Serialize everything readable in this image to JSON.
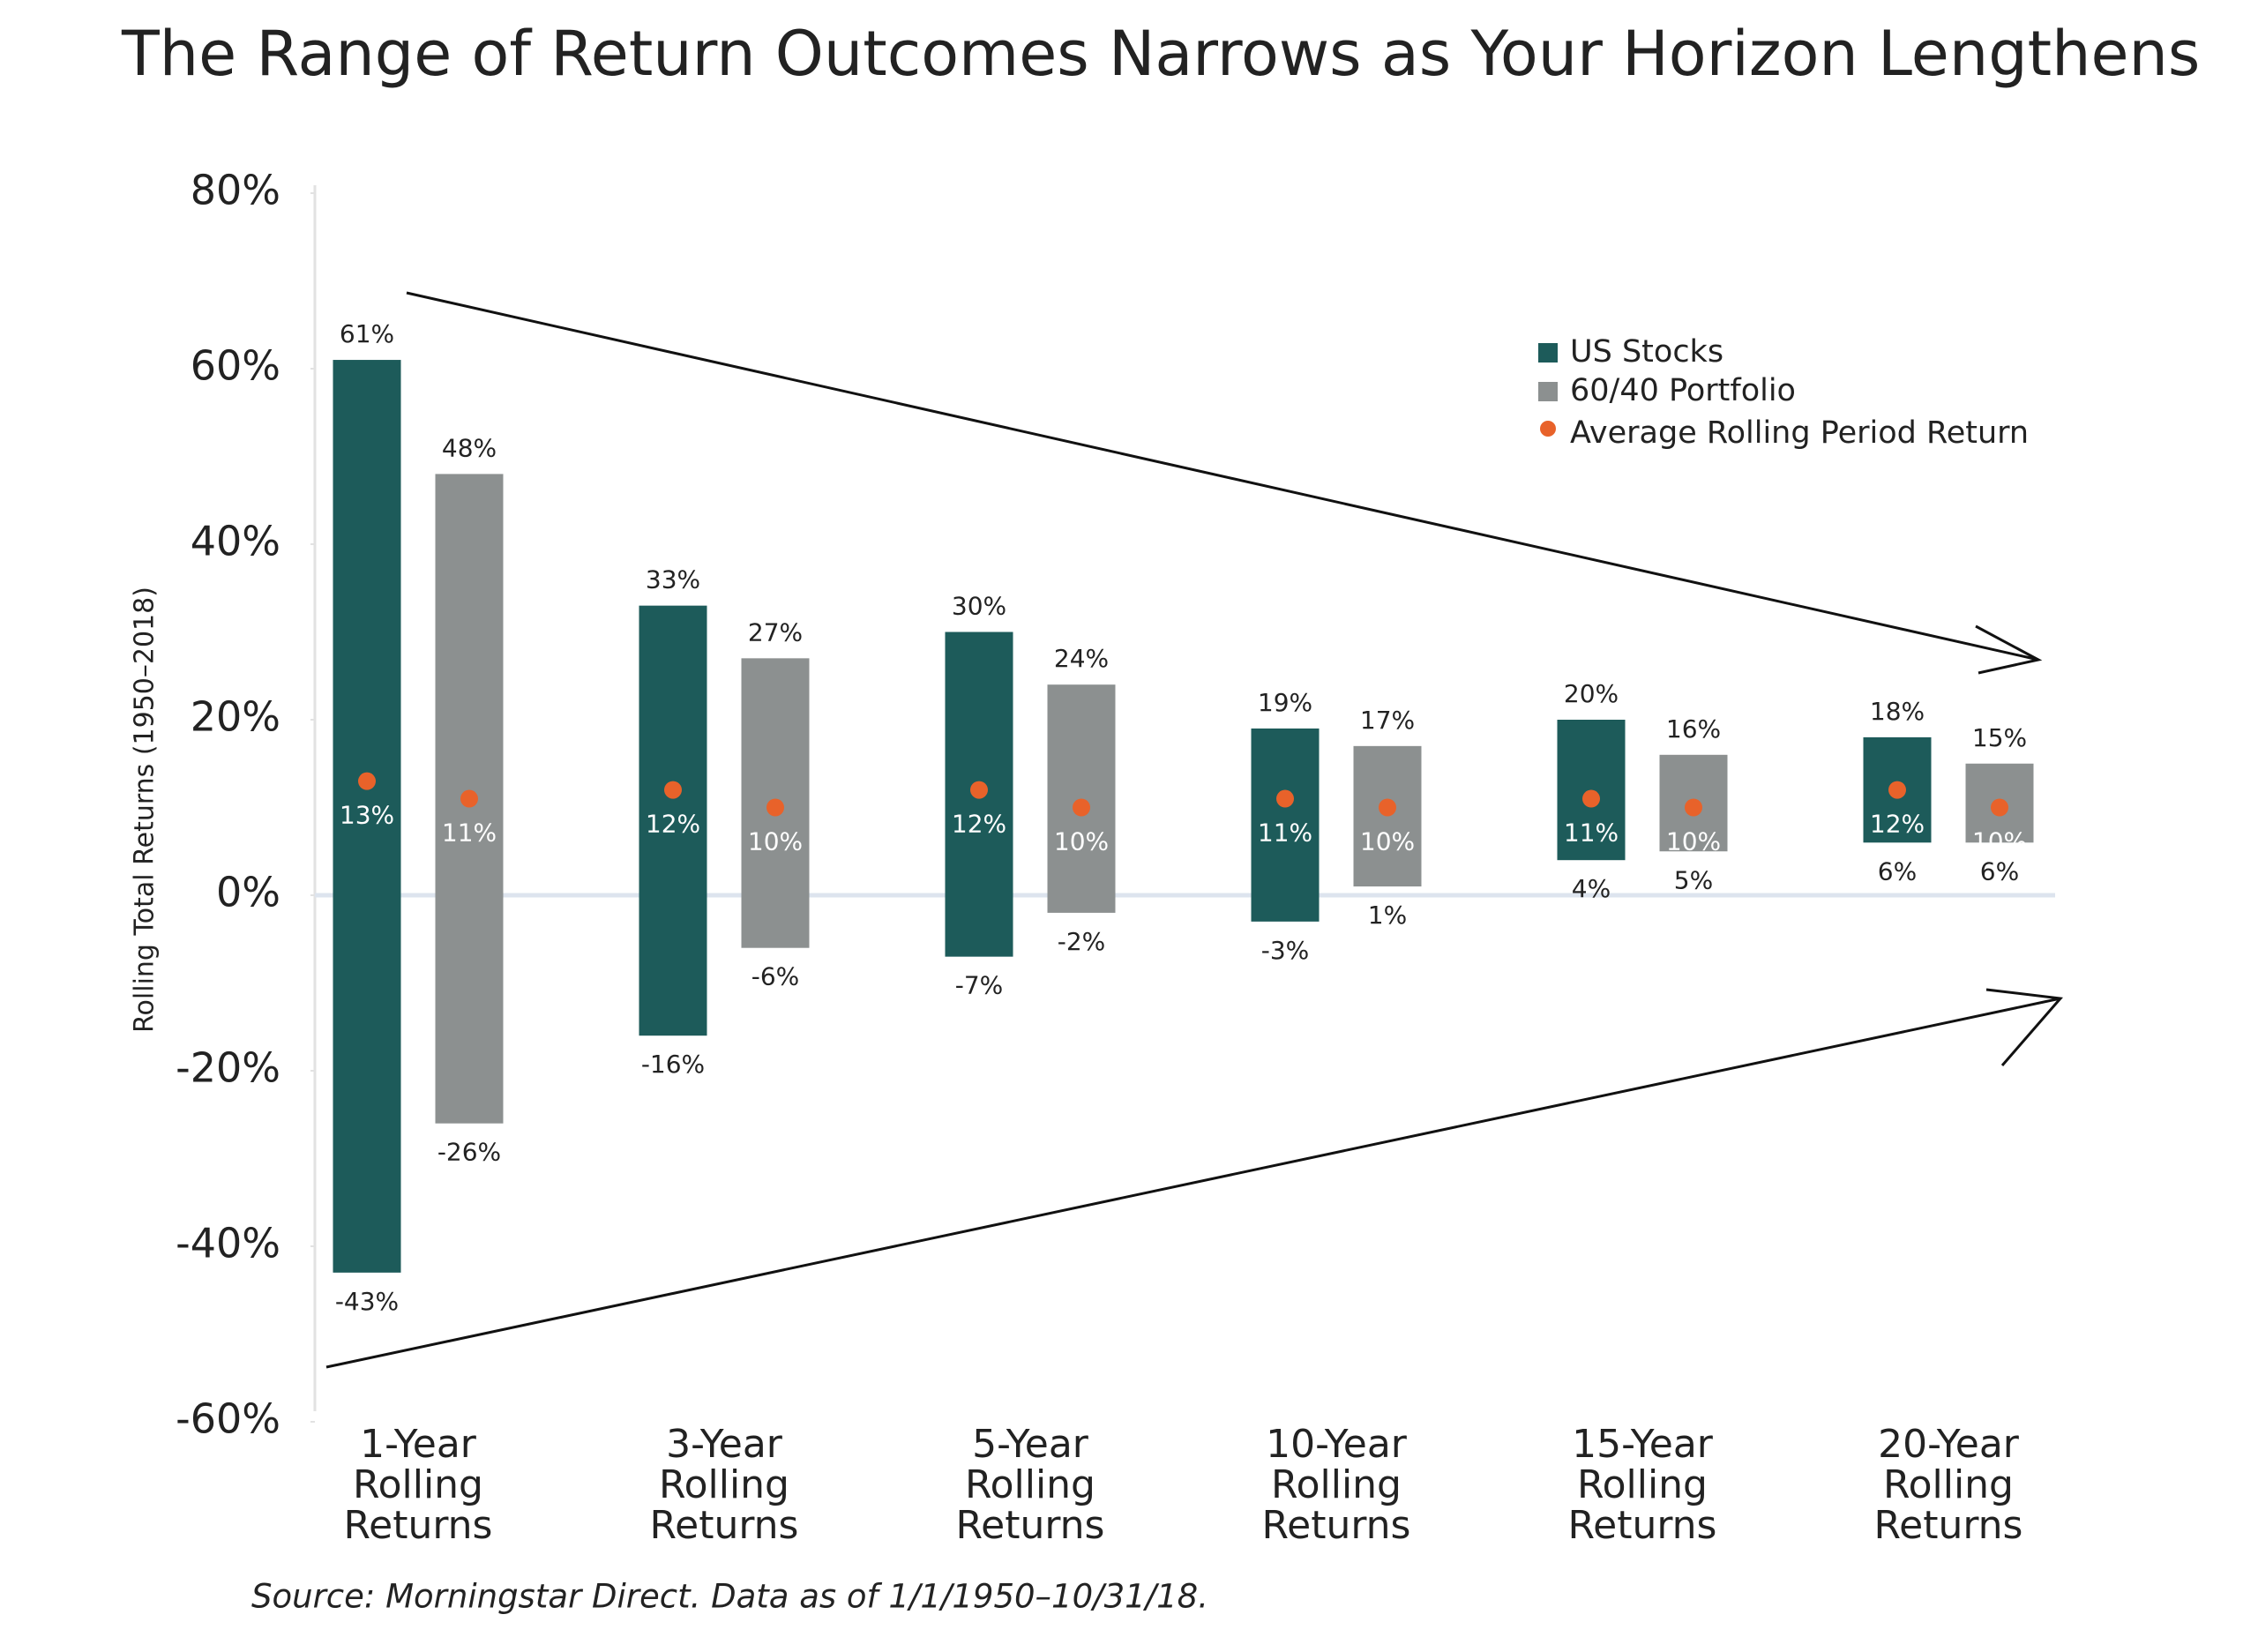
{
  "chart_data": {
    "type": "range",
    "title": "The Range of Return Outcomes Narrows as Your Horizon Lengthens",
    "y_label": "Rolling Total Returns (1950–2018)",
    "source": "Source: Morningstar Direct. Data as of 1/1/1950–10/31/18.",
    "categories": [
      "1-Year Rolling Returns",
      "3-Year Rolling Returns",
      "5-Year Rolling Returns",
      "10-Year Rolling Returns",
      "15-Year Rolling Returns",
      "20-Year Rolling Returns"
    ],
    "ylim": [
      -60,
      80
    ],
    "yticks": [
      {
        "value": -60,
        "label": "-60%"
      },
      {
        "value": -40,
        "label": "-40%"
      },
      {
        "value": -20,
        "label": "-20%"
      },
      {
        "value": 0,
        "label": "0%"
      },
      {
        "value": 20,
        "label": "20%"
      },
      {
        "value": 40,
        "label": "40%"
      },
      {
        "value": 60,
        "label": "60%"
      },
      {
        "value": 80,
        "label": "80%"
      }
    ],
    "series": [
      {
        "name": "US Stocks",
        "color": "#1d5b5a",
        "high": [
          61,
          33,
          30,
          19,
          20,
          18
        ],
        "high_labels": [
          "61%",
          "33%",
          "30%",
          "19%",
          "20%",
          "18%"
        ],
        "low": [
          -43,
          -16,
          -7,
          -3,
          4,
          6
        ],
        "low_labels": [
          "-43%",
          "-16%",
          "-7%",
          "-3%",
          "4%",
          "6%"
        ],
        "average": [
          13,
          12,
          12,
          11,
          11,
          12
        ],
        "average_labels": [
          "13%",
          "12%",
          "12%",
          "11%",
          "11%",
          "12%"
        ]
      },
      {
        "name": "60/40 Portfolio",
        "color": "#8c9090",
        "high": [
          48,
          27,
          24,
          17,
          16,
          15
        ],
        "high_labels": [
          "48%",
          "27%",
          "24%",
          "17%",
          "16%",
          "15%"
        ],
        "low": [
          -26,
          -6,
          -2,
          1,
          5,
          6
        ],
        "low_labels": [
          "-26%",
          "-6%",
          "-2%",
          "1%",
          "5%",
          "6%"
        ],
        "average": [
          11,
          10,
          10,
          10,
          10,
          10
        ],
        "average_labels": [
          "11%",
          "10%",
          "10%",
          "10%",
          "10%",
          "10%"
        ]
      }
    ],
    "average_marker": {
      "name": "Average Rolling Period Return",
      "color": "#e8622a"
    }
  }
}
